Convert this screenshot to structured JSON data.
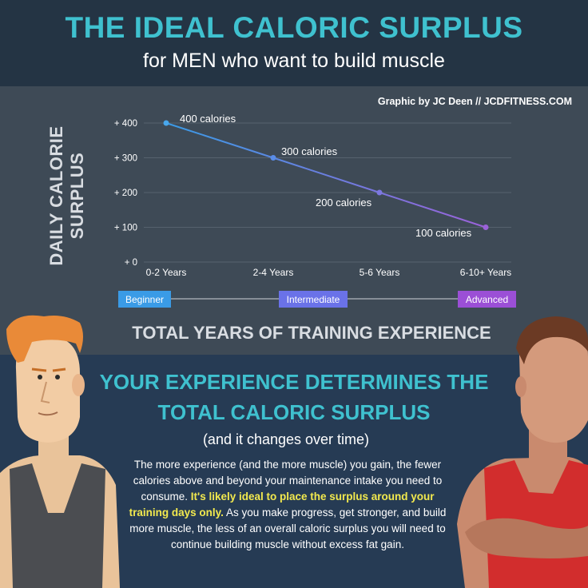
{
  "header": {
    "title": "THE IDEAL CALORIC SURPLUS",
    "subtitle": "for MEN who want to build muscle"
  },
  "credit": "Graphic by JC Deen // JCDFITNESS.COM",
  "chart_data": {
    "type": "line",
    "ylabel": "DAILY CALORIE SURPLUS",
    "xlabel": "TOTAL YEARS OF TRAINING EXPERIENCE",
    "categories": [
      "0-2 Years",
      "2-4 Years",
      "5-6 Years",
      "6-10+ Years"
    ],
    "values": [
      400,
      300,
      200,
      100
    ],
    "data_labels": [
      "400 calories",
      "300 calories",
      "200 calories",
      "100 calories"
    ],
    "yticks": [
      0,
      100,
      200,
      300,
      400
    ],
    "ytick_labels": [
      "+ 0",
      "+ 100",
      "+ 200",
      "+ 300",
      "+ 400"
    ],
    "ylim": [
      0,
      400
    ],
    "grid": true,
    "stages": [
      "Beginner",
      "Intermediate",
      "Advanced"
    ],
    "colors": {
      "start": "#3a9be6",
      "end": "#9b62d9",
      "beginner": "#3a9be6",
      "intermediate": "#6a72e8",
      "advanced": "#9b4fd6"
    }
  },
  "headline": {
    "line1": "YOUR EXPERIENCE DETERMINES THE",
    "line2": "TOTAL CALORIC SURPLUS"
  },
  "paren_note": "(and it changes over time)",
  "body": {
    "part1": "The more experience (and the more muscle) you gain, the fewer calories above and beyond your maintenance intake you need to consume.",
    "highlight": "It's likely ideal to place the surplus around your training days only.",
    "part2": "As you make progress, get stronger, and build more muscle, the less of an overall caloric surplus you will need to continue building muscle without excess fat gain."
  }
}
